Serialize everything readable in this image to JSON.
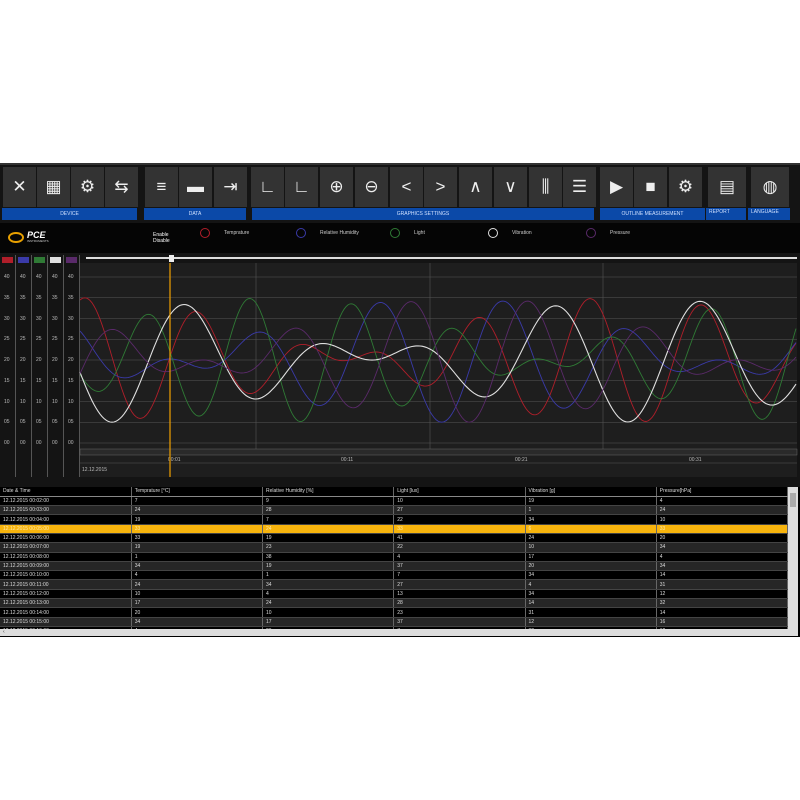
{
  "toolbar": {
    "buttons": [
      {
        "icon": "close-icon",
        "glyph": "✕"
      },
      {
        "icon": "calculator-icon",
        "glyph": "▦"
      },
      {
        "icon": "gear-icon",
        "glyph": "⚙"
      },
      {
        "icon": "device-to-monitor-icon",
        "glyph": "⇆"
      },
      {
        "icon": "database-icon",
        "glyph": "≡"
      },
      {
        "icon": "folder-icon",
        "glyph": "▬"
      },
      {
        "icon": "export-table-icon",
        "glyph": "⇥"
      },
      {
        "icon": "axis-l-icon",
        "glyph": "∟"
      },
      {
        "icon": "axis-l-2-icon",
        "glyph": "∟"
      },
      {
        "icon": "zoom-in-icon",
        "glyph": "⊕"
      },
      {
        "icon": "zoom-out-icon",
        "glyph": "⊖"
      },
      {
        "icon": "chevron-left-icon",
        "glyph": "<"
      },
      {
        "icon": "chevron-right-icon",
        "glyph": ">"
      },
      {
        "icon": "chevron-up-icon",
        "glyph": "∧"
      },
      {
        "icon": "chevron-down-icon",
        "glyph": "∨"
      },
      {
        "icon": "vertical-grid-icon",
        "glyph": "⫼"
      },
      {
        "icon": "horizontal-grid-icon",
        "glyph": "☰"
      },
      {
        "icon": "play-icon",
        "glyph": "▶"
      },
      {
        "icon": "stop-icon",
        "glyph": "■"
      },
      {
        "icon": "settings-icon",
        "glyph": "⚙"
      },
      {
        "icon": "report-icon",
        "glyph": "▤"
      },
      {
        "icon": "globe-icon",
        "glyph": "◍"
      }
    ],
    "sections": [
      "DEVICE",
      "DATA",
      "GRAPHICS SETTINGS",
      "OUTLINE MEASUREMENT",
      "REPORT",
      "LANGUAGE"
    ]
  },
  "logo": {
    "text": "PCE",
    "sub": "INSTRUMENTS"
  },
  "legend": {
    "enable": "Enable",
    "disable": "Disable",
    "series": [
      {
        "label": "Temprature",
        "color": "#b01e2a"
      },
      {
        "label": "Relative Humidity",
        "color": "#3a3aa8"
      },
      {
        "label": "Light",
        "color": "#2f7a35"
      },
      {
        "label": "Vibration",
        "color": "#e0e0e0"
      },
      {
        "label": "Pressure",
        "color": "#5a2a6a"
      }
    ]
  },
  "chart": {
    "yticks": [
      "40",
      "35",
      "30",
      "25",
      "20",
      "15",
      "10",
      "05",
      "00"
    ],
    "xticks": [
      "00:01",
      "00:11",
      "00:21",
      "00:31"
    ],
    "date": "12.12.2015",
    "cursor_color": "#f0a000"
  },
  "table": {
    "headers": [
      "Date & Time",
      "Temprature [°C]",
      "Relative Humidity [%]",
      "Light [lux]",
      "Vibration [g]",
      "Pressure[hPa]"
    ],
    "selected_row": 3,
    "rows": [
      [
        "12.12.2015 00:02:00",
        "7",
        "9",
        "10",
        "19",
        "4"
      ],
      [
        "12.12.2015 00:03:00",
        "24",
        "28",
        "27",
        "1",
        "24"
      ],
      [
        "12.12.2015 00:04:00",
        "19",
        "7",
        "22",
        "34",
        "10"
      ],
      [
        "12.12.2015 00:05:00",
        "33",
        "24",
        "33",
        "6",
        "33"
      ],
      [
        "12.12.2015 00:06:00",
        "33",
        "19",
        "41",
        "24",
        "20"
      ],
      [
        "12.12.2015 00:07:00",
        "19",
        "23",
        "22",
        "10",
        "34"
      ],
      [
        "12.12.2015 00:08:00",
        "1",
        "38",
        "4",
        "17",
        "4"
      ],
      [
        "12.12.2015 00:09:00",
        "34",
        "19",
        "37",
        "20",
        "34"
      ],
      [
        "12.12.2015 00:10:00",
        "4",
        "1",
        "7",
        "34",
        "14"
      ],
      [
        "12.12.2015 00:11:00",
        "24",
        "34",
        "27",
        "4",
        "31"
      ],
      [
        "12.12.2015 00:12:00",
        "10",
        "4",
        "13",
        "34",
        "12"
      ],
      [
        "12.12.2015 00:13:00",
        "17",
        "24",
        "28",
        "14",
        "32"
      ],
      [
        "12.12.2015 00:14:00",
        "20",
        "10",
        "23",
        "31",
        "14"
      ],
      [
        "12.12.2015 00:15:00",
        "34",
        "17",
        "37",
        "12",
        "16"
      ],
      [
        "12.12.2015 00:16:00",
        "4",
        "26",
        "7",
        "32",
        "12"
      ]
    ]
  }
}
